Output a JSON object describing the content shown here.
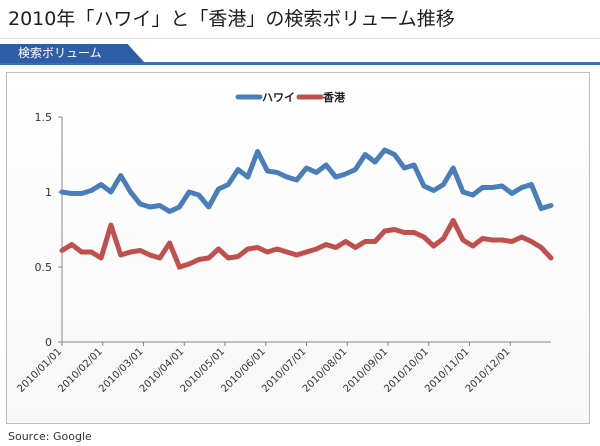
{
  "header": {
    "title": "2010年「ハワイ」と「香港」の検索ボリューム推移"
  },
  "tab": {
    "label": "検索ボリューム"
  },
  "footer": {
    "source": "Source: Google"
  },
  "chart_data": {
    "type": "line",
    "title": "",
    "xlabel": "",
    "ylabel": "",
    "ylim": [
      0,
      1.5
    ],
    "yticks": [
      "0",
      "0.5",
      "1",
      "1.5"
    ],
    "xtick_labels": [
      "2010/01/01",
      "2010/02/01",
      "2010/03/01",
      "2010/04/01",
      "2010/05/01",
      "2010/06/01",
      "2010/07/01",
      "2010/08/01",
      "2010/09/01",
      "2010/10/01",
      "2010/11/01",
      "2010/12/01"
    ],
    "legend": "top-center",
    "series": [
      {
        "name": "ハワイ",
        "color": "#4a7ebb",
        "values": [
          1.0,
          0.99,
          0.99,
          1.01,
          1.05,
          1.0,
          1.11,
          1.0,
          0.92,
          0.9,
          0.91,
          0.87,
          0.9,
          1.0,
          0.98,
          0.9,
          1.02,
          1.05,
          1.15,
          1.1,
          1.27,
          1.14,
          1.13,
          1.1,
          1.08,
          1.16,
          1.13,
          1.18,
          1.1,
          1.12,
          1.15,
          1.25,
          1.2,
          1.28,
          1.25,
          1.16,
          1.18,
          1.04,
          1.01,
          1.05,
          1.16,
          1.0,
          0.98,
          1.03,
          1.03,
          1.04,
          0.99,
          1.03,
          1.05,
          0.89,
          0.91
        ]
      },
      {
        "name": "香港",
        "color": "#c0504d",
        "values": [
          0.61,
          0.65,
          0.6,
          0.6,
          0.56,
          0.78,
          0.58,
          0.6,
          0.61,
          0.58,
          0.56,
          0.66,
          0.5,
          0.52,
          0.55,
          0.56,
          0.62,
          0.56,
          0.57,
          0.62,
          0.63,
          0.6,
          0.62,
          0.6,
          0.58,
          0.6,
          0.62,
          0.65,
          0.63,
          0.67,
          0.63,
          0.67,
          0.67,
          0.74,
          0.75,
          0.73,
          0.73,
          0.7,
          0.64,
          0.69,
          0.81,
          0.68,
          0.64,
          0.69,
          0.68,
          0.68,
          0.67,
          0.7,
          0.67,
          0.63,
          0.56
        ]
      }
    ]
  }
}
